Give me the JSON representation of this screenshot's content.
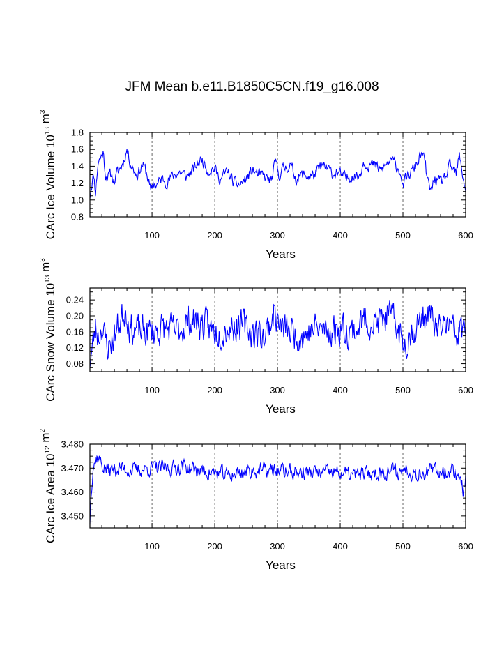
{
  "title": "JFM Mean b.e11.B1850C5CN.f19_g16.008",
  "chart_data": [
    {
      "type": "line",
      "id": "ice-volume",
      "ylabel_main": "CArc Ice Volume 10",
      "ylabel_exp": "13",
      "ylabel_unit": " m",
      "ylabel_unit_exp": "3",
      "xlabel": "Years",
      "xlim": [
        1,
        600
      ],
      "ylim": [
        0.8,
        1.8
      ],
      "xticks": [
        100,
        200,
        300,
        400,
        500,
        600
      ],
      "yticks": [
        0.8,
        1.0,
        1.2,
        1.4,
        1.6,
        1.8
      ],
      "ytick_decimals": 1,
      "vgrid": [
        100,
        200,
        300,
        400,
        500
      ],
      "color": "#0000ff",
      "shape": [
        [
          1,
          1.05
        ],
        [
          4,
          1.2
        ],
        [
          7,
          1.3
        ],
        [
          10,
          1.1
        ],
        [
          14,
          1.45
        ],
        [
          18,
          1.5
        ],
        [
          22,
          1.57
        ],
        [
          26,
          1.3
        ],
        [
          30,
          1.28
        ],
        [
          35,
          1.3
        ],
        [
          40,
          1.22
        ],
        [
          45,
          1.33
        ],
        [
          50,
          1.38
        ],
        [
          55,
          1.47
        ],
        [
          60,
          1.6
        ],
        [
          65,
          1.45
        ],
        [
          70,
          1.37
        ],
        [
          75,
          1.3
        ],
        [
          80,
          1.35
        ],
        [
          85,
          1.42
        ],
        [
          90,
          1.35
        ],
        [
          95,
          1.22
        ],
        [
          98,
          1.08
        ],
        [
          102,
          1.2
        ],
        [
          108,
          1.18
        ],
        [
          115,
          1.25
        ],
        [
          125,
          1.22
        ],
        [
          135,
          1.3
        ],
        [
          145,
          1.33
        ],
        [
          155,
          1.28
        ],
        [
          165,
          1.35
        ],
        [
          175,
          1.45
        ],
        [
          180,
          1.48
        ],
        [
          190,
          1.35
        ],
        [
          200,
          1.38
        ],
        [
          205,
          1.28
        ],
        [
          210,
          1.25
        ],
        [
          220,
          1.35
        ],
        [
          230,
          1.2
        ],
        [
          240,
          1.18
        ],
        [
          250,
          1.25
        ],
        [
          260,
          1.35
        ],
        [
          270,
          1.3
        ],
        [
          280,
          1.27
        ],
        [
          290,
          1.22
        ],
        [
          297,
          1.45
        ],
        [
          302,
          1.3
        ],
        [
          310,
          1.37
        ],
        [
          320,
          1.42
        ],
        [
          330,
          1.25
        ],
        [
          340,
          1.3
        ],
        [
          350,
          1.28
        ],
        [
          360,
          1.3
        ],
        [
          370,
          1.4
        ],
        [
          380,
          1.37
        ],
        [
          390,
          1.3
        ],
        [
          395,
          1.35
        ],
        [
          400,
          1.3
        ],
        [
          410,
          1.25
        ],
        [
          420,
          1.3
        ],
        [
          430,
          1.28
        ],
        [
          437,
          1.45
        ],
        [
          445,
          1.43
        ],
        [
          455,
          1.4
        ],
        [
          465,
          1.35
        ],
        [
          475,
          1.43
        ],
        [
          482,
          1.47
        ],
        [
          490,
          1.4
        ],
        [
          497,
          1.32
        ],
        [
          500,
          1.15
        ],
        [
          505,
          1.25
        ],
        [
          512,
          1.32
        ],
        [
          520,
          1.4
        ],
        [
          525,
          1.48
        ],
        [
          530,
          1.55
        ],
        [
          535,
          1.45
        ],
        [
          540,
          1.2
        ],
        [
          545,
          1.1
        ],
        [
          550,
          1.25
        ],
        [
          560,
          1.2
        ],
        [
          570,
          1.3
        ],
        [
          575,
          1.4
        ],
        [
          580,
          1.35
        ],
        [
          585,
          1.3
        ],
        [
          590,
          1.52
        ],
        [
          594,
          1.35
        ],
        [
          600,
          1.12
        ]
      ],
      "noise_amp": 0.06,
      "seed": 11
    },
    {
      "type": "line",
      "id": "snow-volume",
      "ylabel_main": "CArc Snow Volume 10",
      "ylabel_exp": "13",
      "ylabel_unit": " m",
      "ylabel_unit_exp": "3",
      "xlabel": "Years",
      "xlim": [
        1,
        600
      ],
      "ylim": [
        0.06,
        0.27
      ],
      "xticks": [
        100,
        200,
        300,
        400,
        500,
        600
      ],
      "yticks": [
        0.08,
        0.12,
        0.16,
        0.2,
        0.24
      ],
      "ytick_decimals": 2,
      "vgrid": [
        100,
        200,
        300,
        400,
        500
      ],
      "color": "#0000ff",
      "shape": [
        [
          1,
          0.09
        ],
        [
          5,
          0.12
        ],
        [
          10,
          0.17
        ],
        [
          15,
          0.15
        ],
        [
          20,
          0.18
        ],
        [
          25,
          0.14
        ],
        [
          30,
          0.12
        ],
        [
          40,
          0.15
        ],
        [
          50,
          0.19
        ],
        [
          58,
          0.22
        ],
        [
          65,
          0.17
        ],
        [
          80,
          0.16
        ],
        [
          100,
          0.16
        ],
        [
          120,
          0.17
        ],
        [
          140,
          0.16
        ],
        [
          160,
          0.19
        ],
        [
          180,
          0.18
        ],
        [
          200,
          0.16
        ],
        [
          220,
          0.17
        ],
        [
          240,
          0.18
        ],
        [
          260,
          0.16
        ],
        [
          280,
          0.15
        ],
        [
          295,
          0.21
        ],
        [
          305,
          0.17
        ],
        [
          320,
          0.16
        ],
        [
          340,
          0.15
        ],
        [
          360,
          0.17
        ],
        [
          380,
          0.16
        ],
        [
          400,
          0.17
        ],
        [
          420,
          0.16
        ],
        [
          440,
          0.19
        ],
        [
          460,
          0.18
        ],
        [
          475,
          0.2
        ],
        [
          490,
          0.18
        ],
        [
          500,
          0.13
        ],
        [
          515,
          0.16
        ],
        [
          530,
          0.19
        ],
        [
          540,
          0.21
        ],
        [
          555,
          0.16
        ],
        [
          570,
          0.18
        ],
        [
          585,
          0.15
        ],
        [
          600,
          0.17
        ]
      ],
      "noise_amp": 0.035,
      "seed": 23
    },
    {
      "type": "line",
      "id": "ice-area",
      "ylabel_main": "CArc Ice Area 10",
      "ylabel_exp": "12",
      "ylabel_unit": " m",
      "ylabel_unit_exp": "2",
      "xlabel": "Years",
      "xlim": [
        1,
        600
      ],
      "ylim": [
        3.445,
        3.48
      ],
      "xticks": [
        100,
        200,
        300,
        400,
        500,
        600
      ],
      "yticks": [
        3.45,
        3.46,
        3.47,
        3.48
      ],
      "ytick_decimals": 3,
      "vgrid": [
        100,
        200,
        300,
        400,
        500
      ],
      "color": "#0000ff",
      "shape": [
        [
          1,
          3.448
        ],
        [
          3,
          3.46
        ],
        [
          6,
          3.472
        ],
        [
          10,
          3.474
        ],
        [
          15,
          3.475
        ],
        [
          20,
          3.471
        ],
        [
          30,
          3.469
        ],
        [
          50,
          3.47
        ],
        [
          70,
          3.469
        ],
        [
          100,
          3.47
        ],
        [
          130,
          3.47
        ],
        [
          150,
          3.471
        ],
        [
          170,
          3.469
        ],
        [
          200,
          3.468
        ],
        [
          220,
          3.467
        ],
        [
          240,
          3.468
        ],
        [
          260,
          3.469
        ],
        [
          300,
          3.469
        ],
        [
          340,
          3.468
        ],
        [
          380,
          3.468
        ],
        [
          400,
          3.468
        ],
        [
          420,
          3.467
        ],
        [
          460,
          3.468
        ],
        [
          480,
          3.469
        ],
        [
          497,
          3.468
        ],
        [
          500,
          3.47
        ],
        [
          520,
          3.468
        ],
        [
          560,
          3.469
        ],
        [
          580,
          3.469
        ],
        [
          592,
          3.466
        ],
        [
          596,
          3.461
        ],
        [
          600,
          3.466
        ]
      ],
      "noise_amp": 0.0028,
      "seed": 37
    }
  ]
}
